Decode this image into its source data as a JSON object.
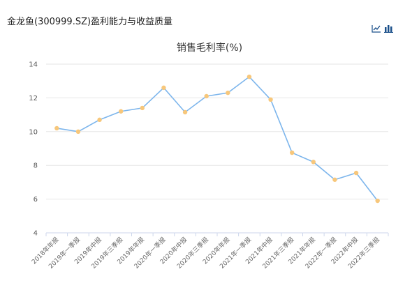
{
  "header": {
    "title": "金龙鱼(300999.SZ)盈利能力与收益质量"
  },
  "toolbar": {
    "icons": [
      "line-chart-icon",
      "bar-chart-icon"
    ]
  },
  "chart_data": {
    "type": "line",
    "title": "销售毛利率(%)",
    "xlabel": "",
    "ylabel": "",
    "categories": [
      "2018年年报",
      "2019年一季报",
      "2019年中报",
      "2019年三季报",
      "2019年年报",
      "2020年一季报",
      "2020年中报",
      "2020年三季报",
      "2020年年报",
      "2021年一季报",
      "2021年中报",
      "2021年三季报",
      "2021年年报",
      "2022年一季报",
      "2022年中报",
      "2022年三季报"
    ],
    "series": [
      {
        "name": "",
        "values": [
          10.2,
          10.0,
          10.7,
          11.2,
          11.4,
          12.6,
          11.15,
          12.1,
          12.3,
          13.25,
          11.9,
          8.75,
          8.2,
          7.15,
          7.55,
          5.9
        ]
      }
    ],
    "ylim": [
      4,
      14
    ],
    "yticks": [
      4,
      6,
      8,
      10,
      12,
      14
    ],
    "grid": true,
    "line_color": "#7cb5ec",
    "marker_color": "#f7c77b"
  }
}
